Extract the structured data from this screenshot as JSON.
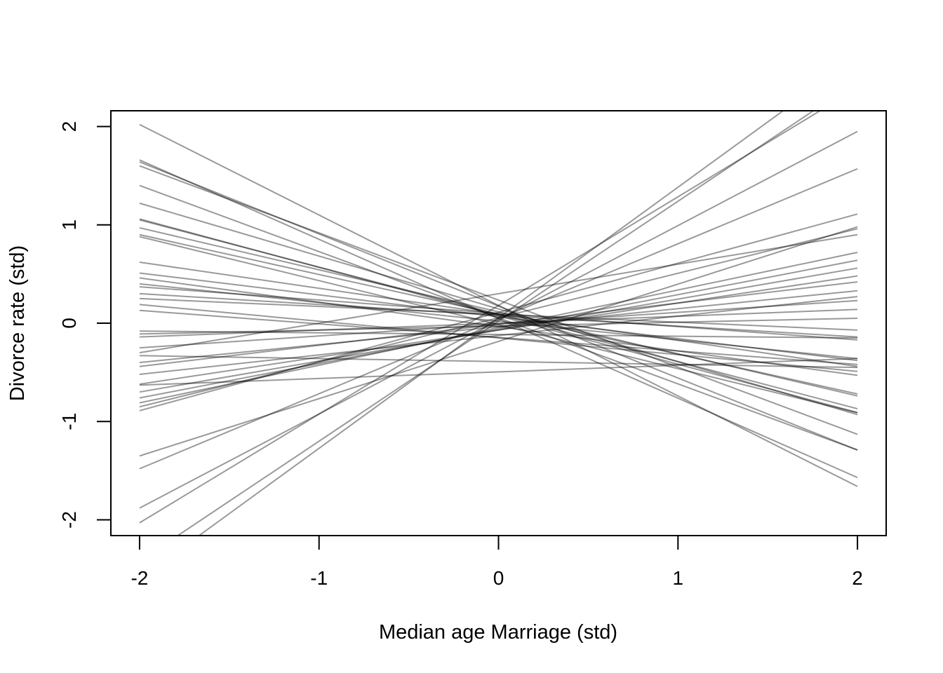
{
  "chart_data": {
    "type": "line",
    "xlabel": "Median age Marriage (std)",
    "ylabel": "Divorce rate (std)",
    "xlim": [
      -2.16,
      2.16
    ],
    "ylim": [
      -2.16,
      2.16
    ],
    "x_ticks": [
      -2,
      -1,
      0,
      1,
      2
    ],
    "x_tick_labels": [
      "-2",
      "-1",
      "0",
      "1",
      "2"
    ],
    "y_ticks": [
      -2,
      -1,
      0,
      1,
      2
    ],
    "y_tick_labels": [
      "-2",
      "-1",
      "0",
      "1",
      "2"
    ],
    "line_color": "#000000",
    "line_opacity": 0.4,
    "grid": false,
    "legend": "none",
    "series_x": [
      -2,
      2
    ],
    "series": [
      {
        "values": [
          2.02,
          -1.66
        ]
      },
      {
        "values": [
          1.66,
          -1.57
        ]
      },
      {
        "values": [
          1.64,
          -1.29
        ]
      },
      {
        "values": [
          1.6,
          -1.13
        ]
      },
      {
        "values": [
          1.4,
          -1.29
        ]
      },
      {
        "values": [
          1.22,
          -0.93
        ]
      },
      {
        "values": [
          1.06,
          -0.91
        ]
      },
      {
        "values": [
          1.05,
          -0.87
        ]
      },
      {
        "values": [
          0.97,
          -0.74
        ]
      },
      {
        "values": [
          0.9,
          -0.72
        ]
      },
      {
        "values": [
          0.88,
          -0.91
        ]
      },
      {
        "values": [
          0.62,
          -0.44
        ]
      },
      {
        "values": [
          0.51,
          -0.38
        ]
      },
      {
        "values": [
          0.46,
          -0.53
        ]
      },
      {
        "values": [
          0.4,
          -0.36
        ]
      },
      {
        "values": [
          0.37,
          -0.17
        ]
      },
      {
        "values": [
          0.3,
          -0.14
        ]
      },
      {
        "values": [
          0.25,
          -0.07
        ]
      },
      {
        "values": [
          0.19,
          -0.49
        ]
      },
      {
        "values": [
          0.13,
          -0.42
        ]
      },
      {
        "values": [
          -0.08,
          -0.15
        ]
      },
      {
        "values": [
          -0.11,
          0.05
        ]
      },
      {
        "values": [
          -0.14,
          0.14
        ]
      },
      {
        "values": [
          -0.25,
          0.23
        ]
      },
      {
        "values": [
          -0.3,
          0.9
        ]
      },
      {
        "values": [
          -0.33,
          -0.45
        ]
      },
      {
        "values": [
          -0.4,
          0.33
        ]
      },
      {
        "values": [
          -0.44,
          0.42
        ]
      },
      {
        "values": [
          -0.52,
          0.27
        ]
      },
      {
        "values": [
          -0.62,
          0.48
        ]
      },
      {
        "values": [
          -0.63,
          -0.36
        ]
      },
      {
        "values": [
          -0.7,
          0.56
        ]
      },
      {
        "values": [
          -0.76,
          0.64
        ]
      },
      {
        "values": [
          -0.81,
          0.72
        ]
      },
      {
        "values": [
          -0.85,
          0.96
        ]
      },
      {
        "values": [
          -0.89,
          1.11
        ]
      },
      {
        "values": [
          -1.35,
          0.98
        ]
      },
      {
        "values": [
          -1.48,
          1.57
        ]
      },
      {
        "values": [
          -1.88,
          1.95
        ]
      },
      {
        "values": [
          -2.03,
          2.39
        ]
      },
      {
        "values": [
          -2.42,
          2.46
        ]
      },
      {
        "values": [
          -2.6,
          2.71
        ]
      }
    ]
  }
}
